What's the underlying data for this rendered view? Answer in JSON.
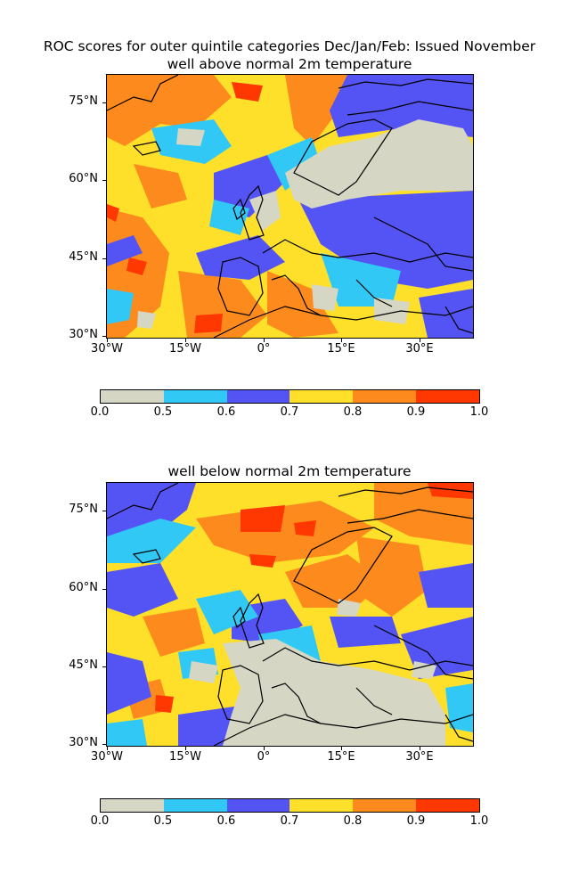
{
  "figure_title": "ROC scores for outer quintile categories Dec/Jan/Feb: Issued November",
  "map_projection": "plate carree",
  "color_levels": [
    "#d6d6c4",
    "#31c8f6",
    "#5454f4",
    "#fee02b",
    "#fc8a1c",
    "#fe3800"
  ],
  "coastline_color": "#000000",
  "panels": [
    {
      "subtitle": "well above normal 2m temperature",
      "lat_labels": [
        "75°N",
        "60°N",
        "45°N",
        "30°N"
      ],
      "lon_labels": [
        "30°W",
        "15°W",
        "0°",
        "15°E",
        "30°E"
      ],
      "colorbar_ticks": [
        "0.0",
        "0.5",
        "0.6",
        "0.7",
        "0.8",
        "0.9",
        "1.0"
      ]
    },
    {
      "subtitle": "well below normal 2m temperature",
      "lat_labels": [
        "75°N",
        "60°N",
        "45°N",
        "30°N"
      ],
      "lon_labels": [
        "30°W",
        "15°W",
        "0°",
        "15°E",
        "30°E"
      ],
      "colorbar_ticks": [
        "0.0",
        "0.5",
        "0.6",
        "0.7",
        "0.8",
        "0.9",
        "1.0"
      ]
    }
  ],
  "chart_data": [
    {
      "type": "heatmap",
      "title": "well above normal 2m temperature",
      "lon_range": [
        -30,
        40
      ],
      "lat_range": [
        30,
        80
      ],
      "color_bounds": [
        0.0,
        0.5,
        0.6,
        0.7,
        0.8,
        0.9,
        1.0
      ],
      "colorbar_orientation": "horizontal",
      "colorbar_placement": "below"
    },
    {
      "type": "heatmap",
      "title": "well below normal 2m temperature",
      "lon_range": [
        -30,
        40
      ],
      "lat_range": [
        30,
        80
      ],
      "color_bounds": [
        0.0,
        0.5,
        0.6,
        0.7,
        0.8,
        0.9,
        1.0
      ],
      "colorbar_orientation": "horizontal",
      "colorbar_placement": "below"
    }
  ]
}
